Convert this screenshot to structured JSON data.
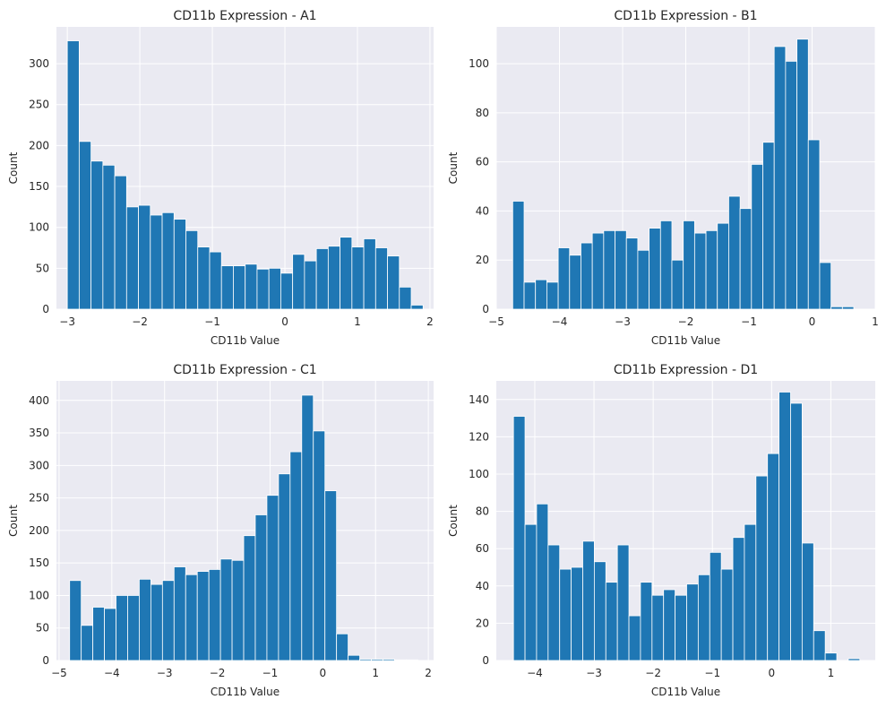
{
  "chart_data": [
    {
      "type": "bar",
      "title": "CD11b Expression - A1",
      "xlabel": "CD11b Value",
      "ylabel": "Count",
      "xlim": [
        -3.15,
        2.05
      ],
      "ylim": [
        0,
        345
      ],
      "xticks": [
        -3,
        -2,
        -1,
        0,
        1,
        2
      ],
      "xtick_labels": [
        "−3",
        "−2",
        "−1",
        "0",
        "1",
        "2"
      ],
      "yticks": [
        0,
        50,
        100,
        150,
        200,
        250,
        300
      ],
      "ytick_labels": [
        "0",
        "50",
        "100",
        "150",
        "200",
        "250",
        "300"
      ],
      "grid": true,
      "bin_start": -3.0,
      "bin_width": 0.1635,
      "values": [
        328,
        205,
        181,
        176,
        163,
        125,
        127,
        115,
        118,
        110,
        96,
        76,
        70,
        53,
        53,
        55,
        49,
        50,
        44,
        67,
        59,
        74,
        77,
        88,
        76,
        86,
        75,
        65,
        27,
        5
      ]
    },
    {
      "type": "bar",
      "title": "CD11b Expression - B1",
      "xlabel": "CD11b Value",
      "ylabel": "Count",
      "xlim": [
        -5.0,
        1.0
      ],
      "ylim": [
        0,
        115
      ],
      "xticks": [
        -5,
        -4,
        -3,
        -2,
        -1,
        0,
        1
      ],
      "xtick_labels": [
        "−5",
        "−4",
        "−3",
        "−2",
        "−1",
        "0",
        "1"
      ],
      "yticks": [
        0,
        20,
        40,
        60,
        80,
        100
      ],
      "ytick_labels": [
        "0",
        "20",
        "40",
        "60",
        "80",
        "100"
      ],
      "grid": true,
      "bin_start": -4.74,
      "bin_width": 0.18,
      "values": [
        44,
        11,
        12,
        11,
        25,
        22,
        27,
        31,
        32,
        32,
        29,
        24,
        33,
        36,
        20,
        36,
        31,
        32,
        35,
        46,
        41,
        59,
        68,
        107,
        101,
        110,
        69,
        19,
        1,
        1
      ]
    },
    {
      "type": "bar",
      "title": "CD11b Expression - C1",
      "xlabel": "CD11b Value",
      "ylabel": "Count",
      "xlim": [
        -5.05,
        2.1
      ],
      "ylim": [
        0,
        430
      ],
      "xticks": [
        -5,
        -4,
        -3,
        -2,
        -1,
        0,
        1,
        2
      ],
      "xtick_labels": [
        "−5",
        "−4",
        "−3",
        "−2",
        "−1",
        "0",
        "1",
        "2"
      ],
      "yticks": [
        0,
        50,
        100,
        150,
        200,
        250,
        300,
        350,
        400
      ],
      "ytick_labels": [
        "0",
        "50",
        "100",
        "150",
        "200",
        "250",
        "300",
        "350",
        "400"
      ],
      "grid": true,
      "bin_start": -4.8,
      "bin_width": 0.22,
      "values": [
        123,
        54,
        82,
        80,
        100,
        100,
        125,
        117,
        123,
        144,
        132,
        137,
        140,
        156,
        154,
        192,
        224,
        254,
        287,
        321,
        408,
        353,
        261,
        41,
        8,
        2,
        2,
        2,
        1,
        1
      ]
    },
    {
      "type": "bar",
      "title": "CD11b Expression - D1",
      "xlabel": "CD11b Value",
      "ylabel": "Count",
      "xlim": [
        -4.65,
        1.75
      ],
      "ylim": [
        0,
        150
      ],
      "xticks": [
        -4,
        -3,
        -2,
        -1,
        0,
        1
      ],
      "xtick_labels": [
        "−4",
        "−3",
        "−2",
        "−1",
        "0",
        "1"
      ],
      "yticks": [
        0,
        20,
        40,
        60,
        80,
        100,
        120,
        140
      ],
      "ytick_labels": [
        "0",
        "20",
        "40",
        "60",
        "80",
        "100",
        "120",
        "140"
      ],
      "grid": true,
      "bin_start": -4.36,
      "bin_width": 0.195,
      "values": [
        131,
        73,
        84,
        62,
        49,
        50,
        64,
        53,
        42,
        62,
        24,
        42,
        35,
        38,
        35,
        41,
        46,
        58,
        49,
        66,
        73,
        99,
        111,
        144,
        138,
        63,
        16,
        4,
        0,
        1
      ]
    }
  ]
}
